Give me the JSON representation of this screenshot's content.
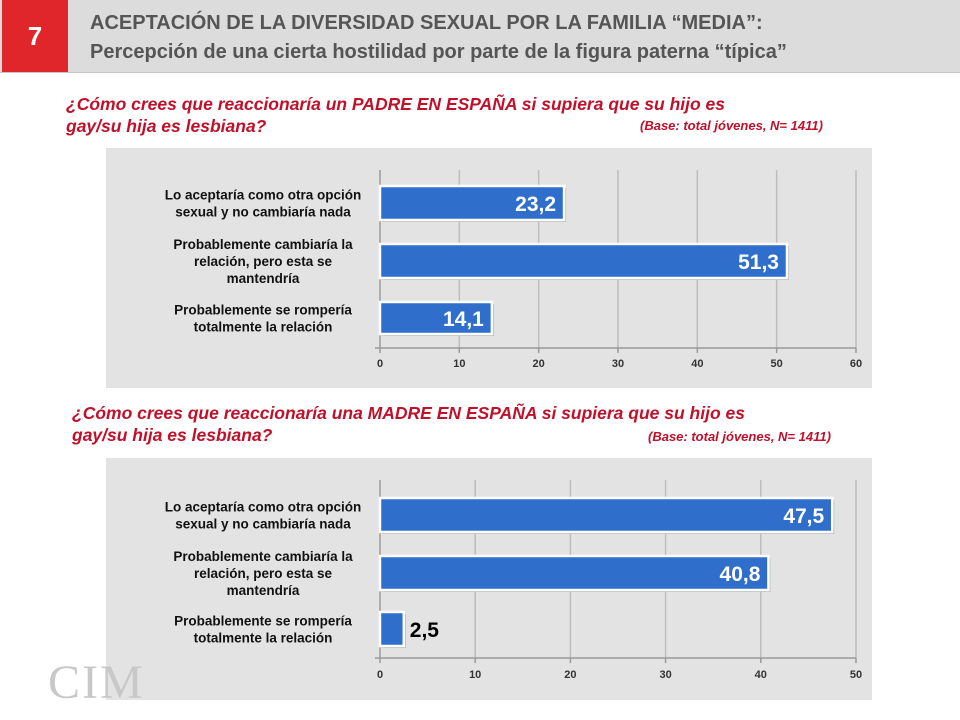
{
  "slide": {
    "number": "7",
    "title_line1": "ACEPTACIÓN DE LA DIVERSIDAD SEXUAL POR LA FAMILIA “MEDIA”:",
    "title_line2": "Percepción de una cierta hostilidad por parte de la figura paterna “típica”",
    "logo": "CIM"
  },
  "questions": [
    {
      "line1": "¿Cómo crees que reaccionaría un PADRE EN ESPAÑA si supiera que su hijo es",
      "line2": "gay/su hija es lesbiana?",
      "base": "(Base: total jóvenes, N= 1411)"
    },
    {
      "line1": "¿Cómo crees que reaccionaría una MADRE EN ESPAÑA si supiera que su hijo es",
      "line2": "gay/su hija es lesbiana?",
      "base": "(Base: total jóvenes, N= 1411)"
    }
  ],
  "colors": {
    "bar": "#2f6fcb",
    "badge": "#e0262a",
    "question": "#c0102a",
    "panel": "#e3e3e3"
  },
  "chart_data": [
    {
      "type": "bar",
      "orientation": "horizontal",
      "categories": [
        [
          "Lo aceptaría como otra opción",
          "sexual y no cambiaría nada"
        ],
        [
          "Probablemente cambiaría la",
          "relación, pero esta se",
          "mantendría"
        ],
        [
          "Probablemente se rompería",
          "totalmente la relación"
        ]
      ],
      "values": [
        23.2,
        51.3,
        14.1
      ],
      "labels": [
        "23,2",
        "51,3",
        "14,1"
      ],
      "xlim": [
        0,
        60
      ],
      "xticks": [
        "0",
        "10",
        "20",
        "30",
        "40",
        "50",
        "60"
      ],
      "grid": true
    },
    {
      "type": "bar",
      "orientation": "horizontal",
      "categories": [
        [
          "Lo aceptaría como otra opción",
          "sexual y no cambiaría nada"
        ],
        [
          "Probablemente cambiaría la",
          "relación, pero esta se",
          "mantendría"
        ],
        [
          "Probablemente se rompería",
          "totalmente la relación"
        ]
      ],
      "values": [
        47.5,
        40.8,
        2.5
      ],
      "labels": [
        "47,5",
        "40,8",
        "2,5"
      ],
      "xlim": [
        0,
        50
      ],
      "xticks": [
        "0",
        "10",
        "20",
        "30",
        "40",
        "50"
      ],
      "grid": true
    }
  ]
}
